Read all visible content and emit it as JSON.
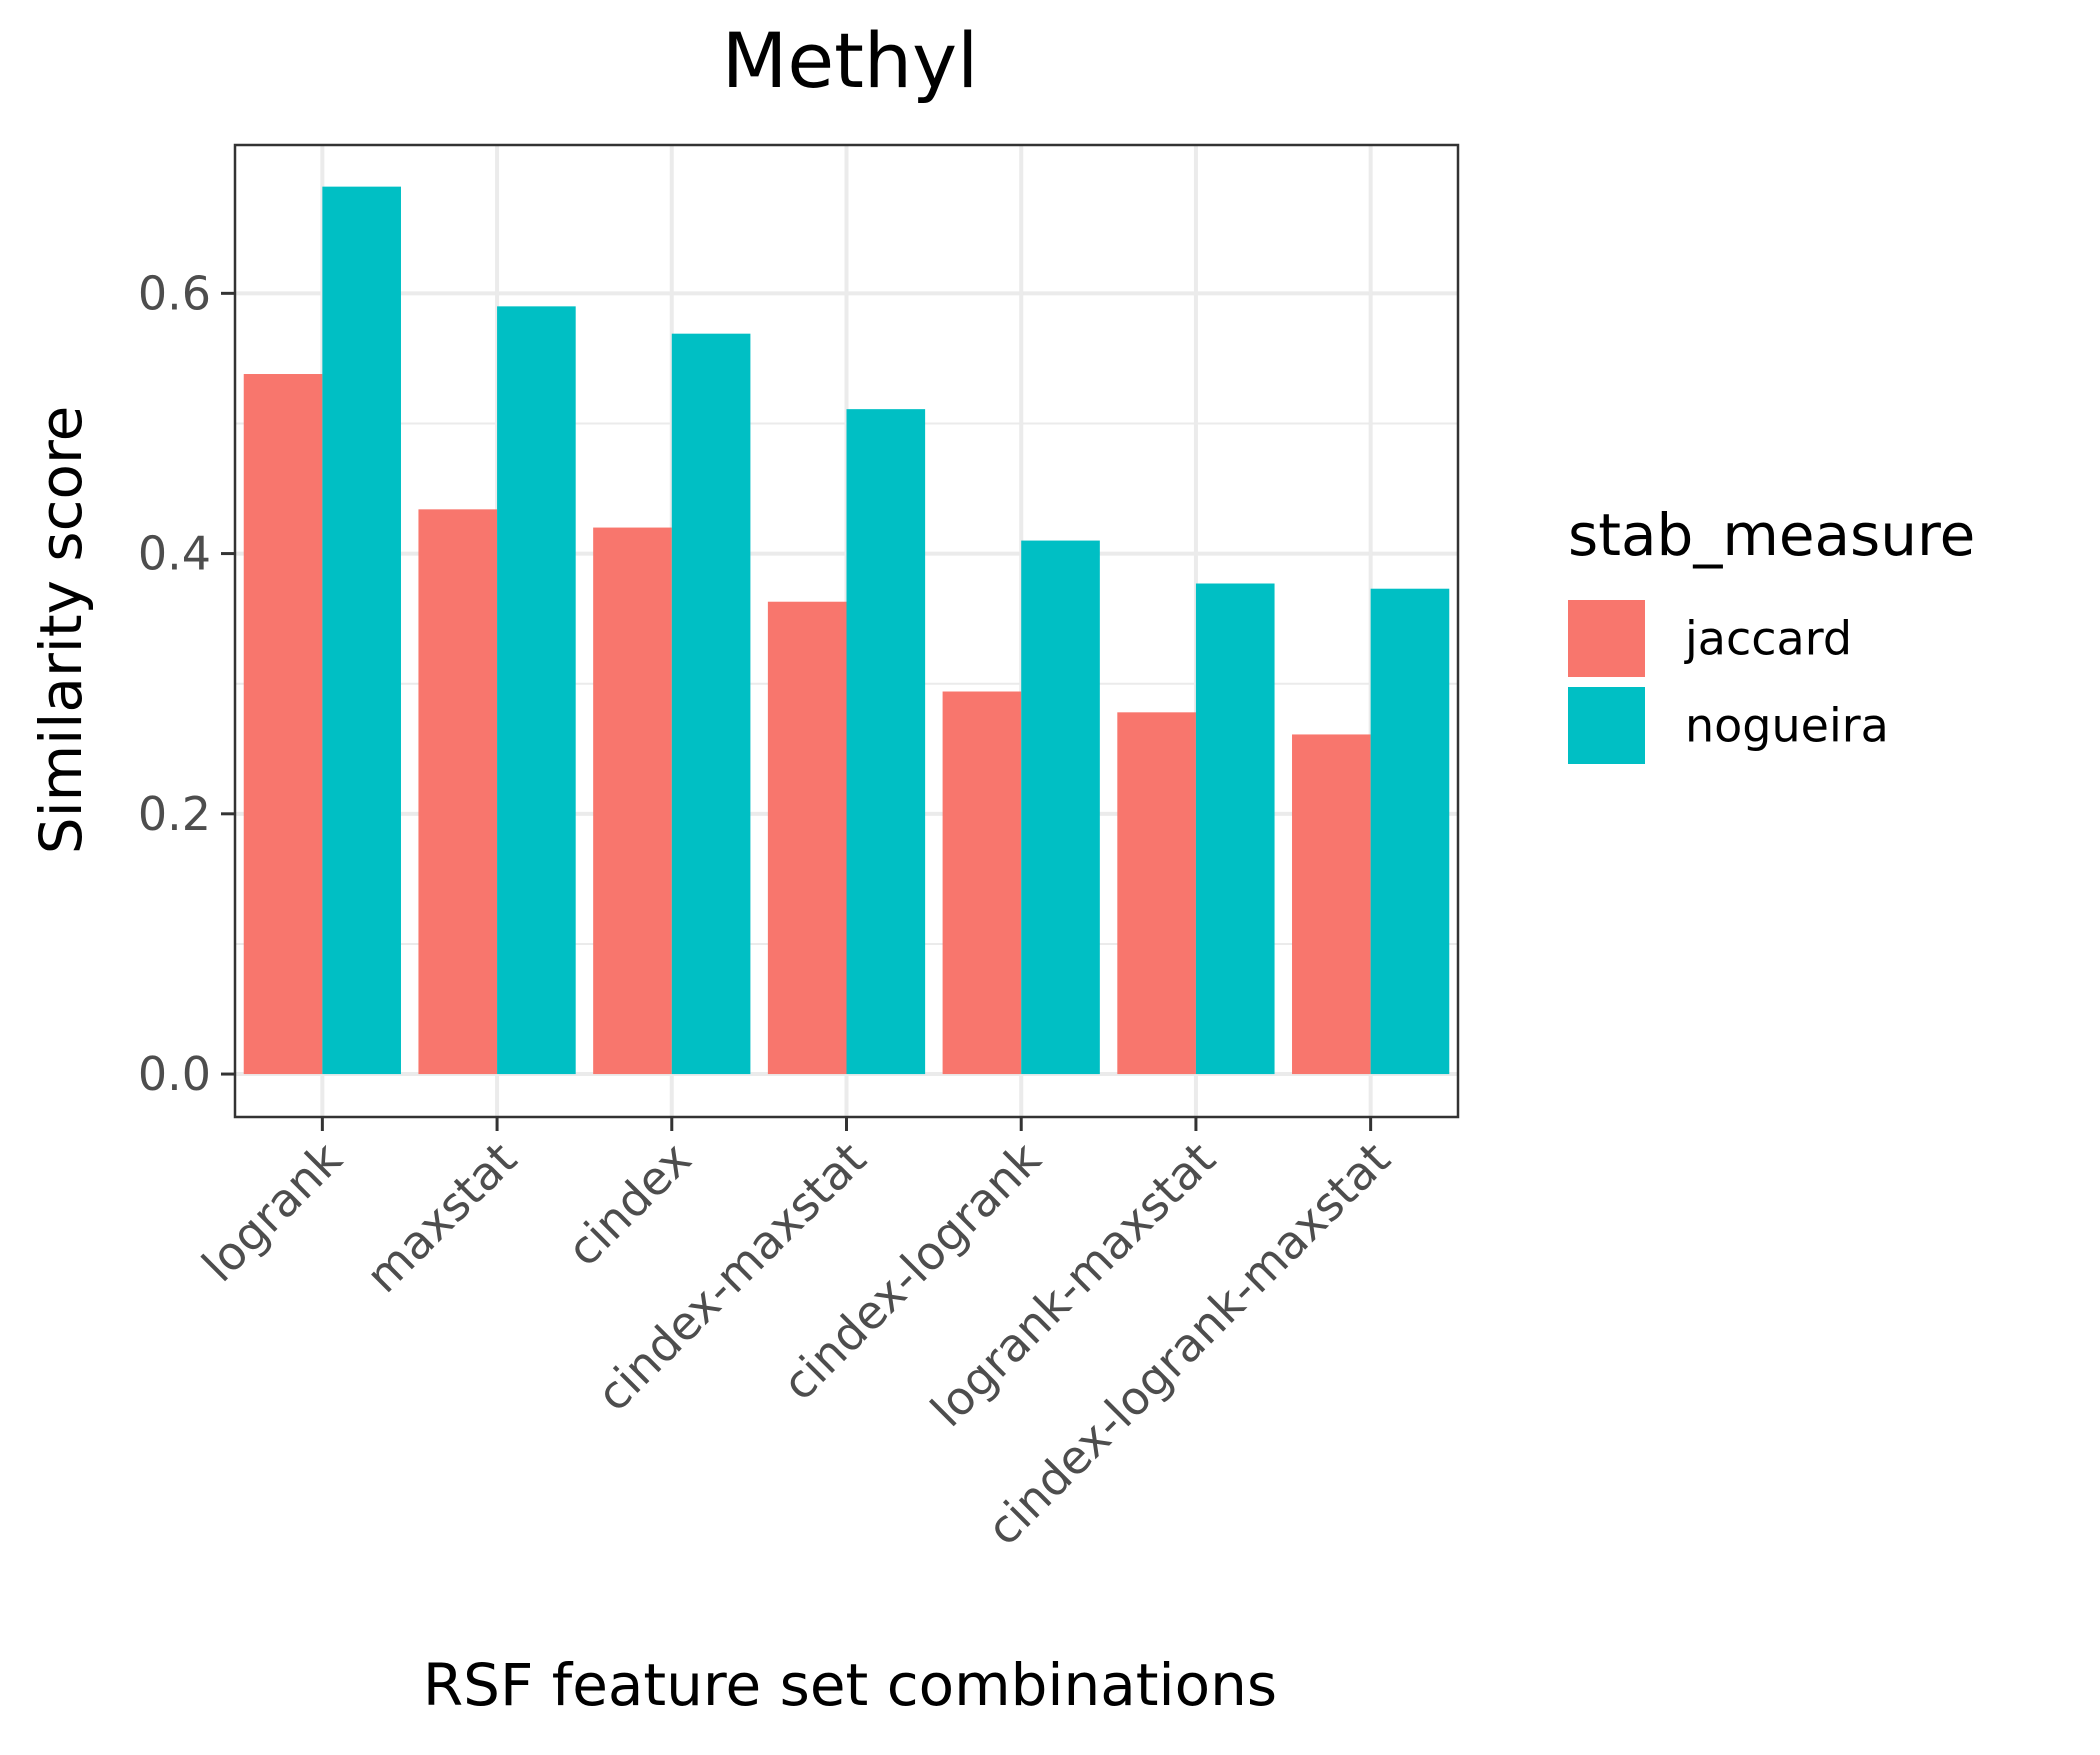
{
  "chart_data": {
    "type": "bar",
    "title": "Methyl",
    "xlabel": "RSF feature set combinations",
    "ylabel": "Similarity score",
    "categories": [
      "logrank",
      "maxstat",
      "cindex",
      "cindex-maxstat",
      "cindex-logrank",
      "logrank-maxstat",
      "cindex-logrank-maxstat"
    ],
    "series": [
      {
        "name": "jaccard",
        "color": "#F8766D",
        "values": [
          0.538,
          0.434,
          0.42,
          0.363,
          0.294,
          0.278,
          0.261
        ]
      },
      {
        "name": "nogueira",
        "color": "#00BFC4",
        "values": [
          0.682,
          0.59,
          0.569,
          0.511,
          0.41,
          0.377,
          0.373
        ]
      }
    ],
    "ylim": [
      -0.033,
      0.714
    ],
    "yticks": [
      "0.0",
      "0.2",
      "0.4",
      "0.6"
    ],
    "grid": true,
    "legend": {
      "title": "stab_measure",
      "position": "right"
    }
  }
}
